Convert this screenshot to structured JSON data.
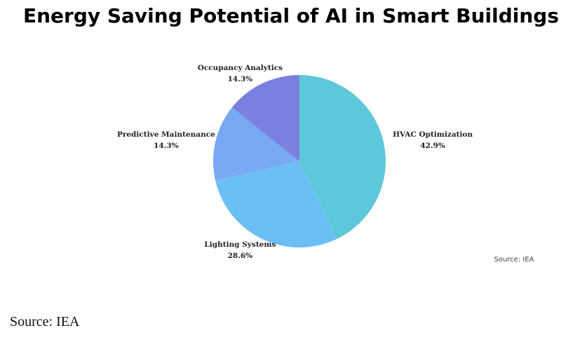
{
  "chart_data": {
    "type": "pie",
    "title": "Energy Saving Potential of AI in Smart Buildings",
    "categories": [
      "HVAC Optimization",
      "Lighting Systems",
      "Predictive Maintenance",
      "Occupancy Analytics"
    ],
    "values": [
      42.9,
      28.6,
      14.3,
      14.3
    ],
    "value_labels": [
      "42.9%",
      "28.6%",
      "14.3%",
      "14.3%"
    ],
    "colors": [
      "#5cc8d9",
      "#6bbff5",
      "#78a9f2",
      "#7b80e0"
    ],
    "source": "Source: IEA"
  },
  "footer": "Source: IEA"
}
